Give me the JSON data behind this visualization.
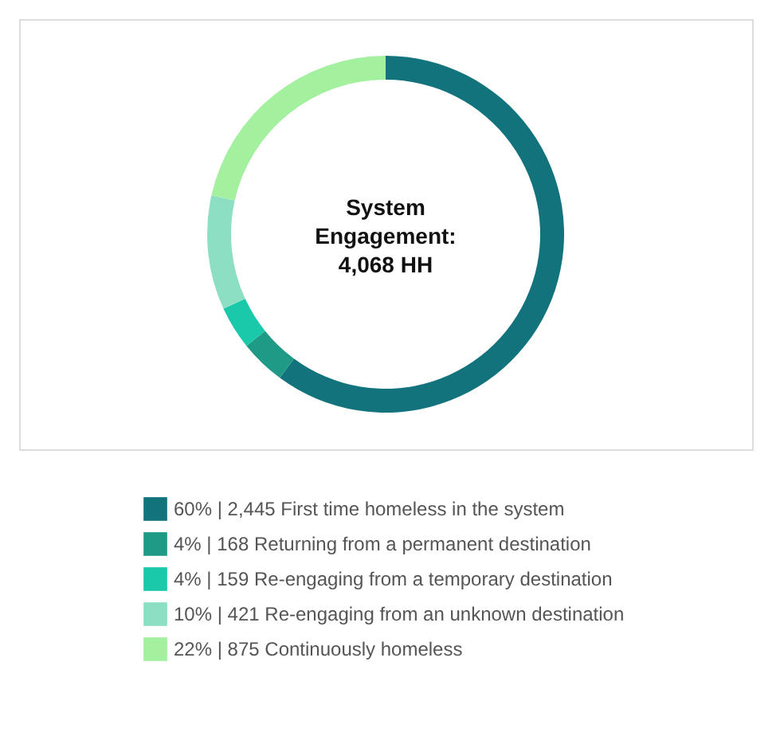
{
  "chart_data": {
    "type": "donut",
    "categories": [
      "60% | 2,445 First time homeless in the system",
      "4% | 168 Returning from a permanent destination",
      "4% | 159 Re-engaging from a temporary destination",
      "10% | 421 Re-engaging from an unknown destination",
      "22% | 875 Continuously homeless"
    ],
    "values": [
      2445,
      168,
      159,
      421,
      875
    ],
    "colors": [
      "#12737d",
      "#1e9a86",
      "#1ac9a9",
      "#8ddfc3",
      "#a3f09f"
    ],
    "annotations": [
      "System Engagement: 4,068 HH"
    ],
    "legend": "bottom"
  }
}
